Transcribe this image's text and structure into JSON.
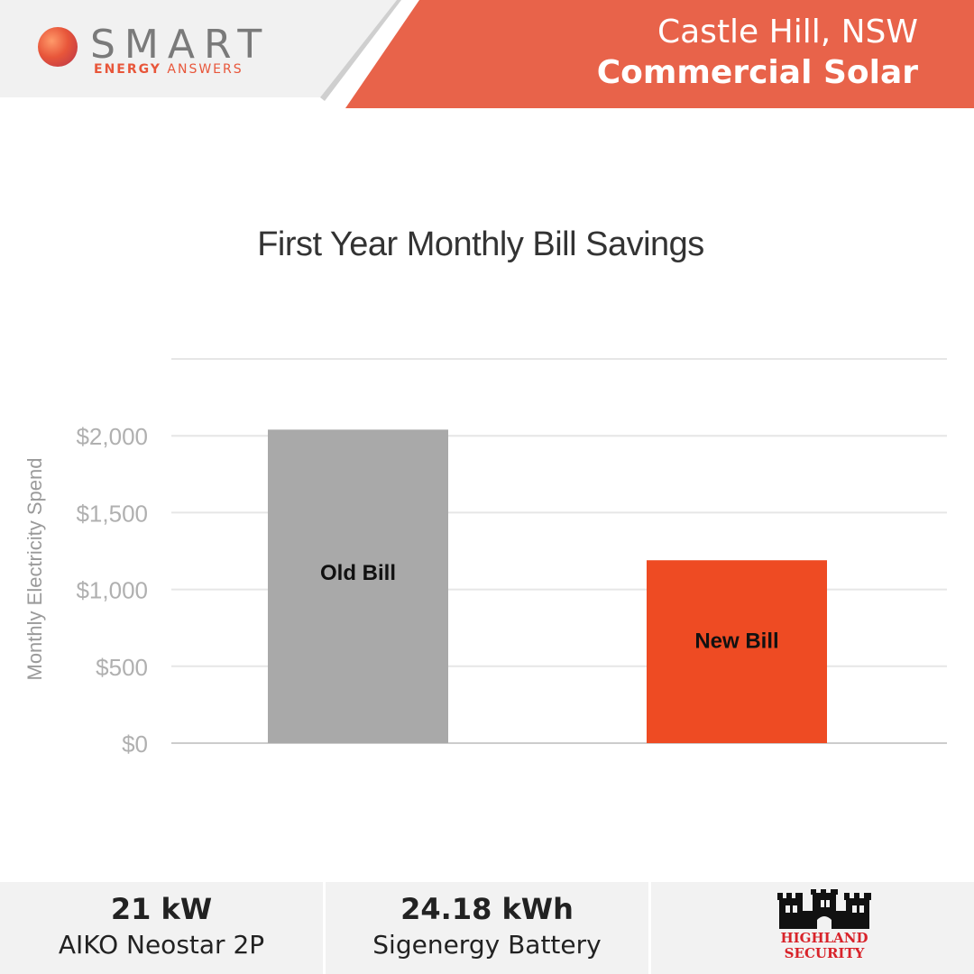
{
  "header": {
    "logo_word": "SMART",
    "logo_sub_bold": "ENERGY",
    "logo_sub_thin": "ANSWERS",
    "location": "Castle Hill, NSW",
    "category": "Commercial Solar",
    "accent": "#e8634a"
  },
  "chart_data": {
    "type": "bar",
    "title": "First Year Monthly Bill Savings",
    "ylabel": "Monthly Electricity Spend",
    "xlabel": "",
    "categories": [
      "Old Bill",
      "New Bill"
    ],
    "values": [
      2040,
      1190
    ],
    "colors": [
      "#a9a9a9",
      "#ee4b23"
    ],
    "ylim": [
      0,
      2500
    ],
    "yticks": [
      0,
      500,
      1000,
      1500,
      2000
    ],
    "ytick_labels": [
      "$0",
      "$500",
      "$1,000",
      "$1,500",
      "$2,000"
    ],
    "grid": true
  },
  "footer": {
    "items": [
      {
        "value": "21 kW",
        "label": "AIKO Neostar 2P"
      },
      {
        "value": "24.18 kWh",
        "label": "Sigenergy Battery"
      }
    ],
    "brand_line1": "HIGHLAND",
    "brand_line2": "SECURITY"
  }
}
